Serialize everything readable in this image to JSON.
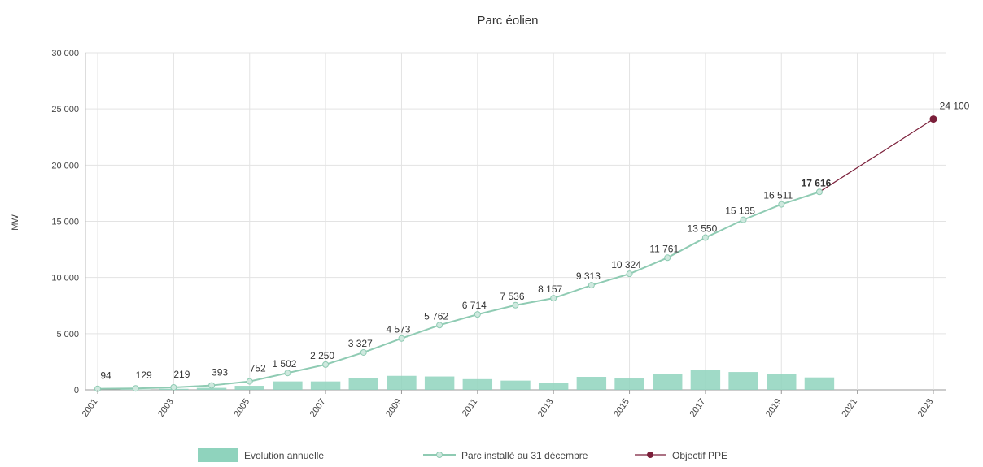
{
  "chart_data": {
    "type": "bar+line",
    "title": "Parc éolien",
    "ylabel": "MW",
    "xlabel": "",
    "ylim": [
      0,
      30000
    ],
    "yticks": [
      0,
      5000,
      10000,
      15000,
      20000,
      25000,
      30000
    ],
    "ytick_labels": [
      "0",
      "5 000",
      "10 000",
      "15 000",
      "20 000",
      "25 000",
      "30 000"
    ],
    "xlim": [
      2001,
      2023
    ],
    "xtick_labels": [
      "2001",
      "2003",
      "2005",
      "2007",
      "2009",
      "2011",
      "2013",
      "2015",
      "2017",
      "2019",
      "2021",
      "2023"
    ],
    "grid": true,
    "legend_position": "bottom",
    "colors": {
      "bars": "#8fd3bd",
      "line": "#8fcbb3",
      "objective": "#7b1f3a"
    },
    "series": [
      {
        "name": "Evolution annuelle",
        "kind": "bar",
        "x": [
          2002,
          2003,
          2004,
          2005,
          2006,
          2007,
          2008,
          2009,
          2010,
          2011,
          2012,
          2013,
          2014,
          2015,
          2016,
          2017,
          2018,
          2019,
          2020
        ],
        "values": [
          35,
          90,
          174,
          359,
          750,
          748,
          1077,
          1246,
          1189,
          952,
          822,
          621,
          1156,
          1011,
          1437,
          1789,
          1585,
          1376,
          1106
        ]
      },
      {
        "name": "Parc installé au 31 décembre",
        "kind": "line",
        "x": [
          2001,
          2002,
          2003,
          2004,
          2005,
          2006,
          2007,
          2008,
          2009,
          2010,
          2011,
          2012,
          2013,
          2014,
          2015,
          2016,
          2017,
          2018,
          2019,
          2020
        ],
        "values": [
          94,
          129,
          219,
          393,
          752,
          1502,
          2250,
          3327,
          4573,
          5762,
          6714,
          7536,
          8157,
          9313,
          10324,
          11761,
          13550,
          15135,
          16511,
          17616
        ],
        "labels": [
          "94",
          "129",
          "219",
          "393",
          "752",
          "1 502",
          "2 250",
          "3 327",
          "4 573",
          "5 762",
          "6 714",
          "7 536",
          "8 157",
          "9 313",
          "10 324",
          "11 761",
          "13 550",
          "15 135",
          "16 511",
          "17 616"
        ]
      },
      {
        "name": "Objectif PPE",
        "kind": "line",
        "x": [
          2020,
          2023
        ],
        "values": [
          17616,
          24100
        ],
        "labels": [
          "",
          "24 100"
        ]
      }
    ]
  }
}
